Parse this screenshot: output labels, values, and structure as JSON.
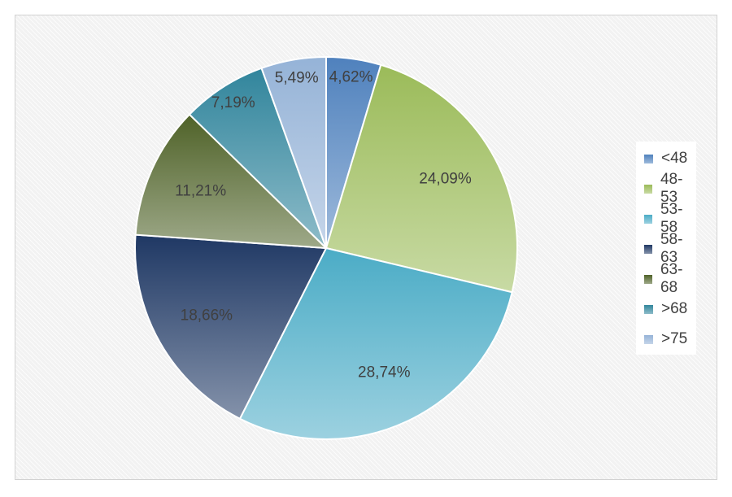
{
  "chart_data": {
    "type": "pie",
    "start_angle_deg": 0,
    "direction": "clockwise",
    "slices": [
      {
        "label": "<48",
        "value": 4.62,
        "display": "4,62%",
        "color": "#4f81bd"
      },
      {
        "label": "48-53",
        "value": 24.09,
        "display": "24,09%",
        "color": "#9bbb59"
      },
      {
        "label": "53-58",
        "value": 28.74,
        "display": "28,74%",
        "color": "#4bacc6"
      },
      {
        "label": "58-63",
        "value": 18.66,
        "display": "18,66%",
        "color": "#1f3864"
      },
      {
        "label": "63-68",
        "value": 11.21,
        "display": "11,21%",
        "color": "#4f6228"
      },
      {
        "label": ">68",
        "value": 7.19,
        "display": "7,19%",
        "color": "#31859c"
      },
      {
        "label": ">75",
        "value": 5.49,
        "display": "5,49%",
        "color": "#95b3d7"
      }
    ],
    "legend_position": "right",
    "data_labels": true
  }
}
